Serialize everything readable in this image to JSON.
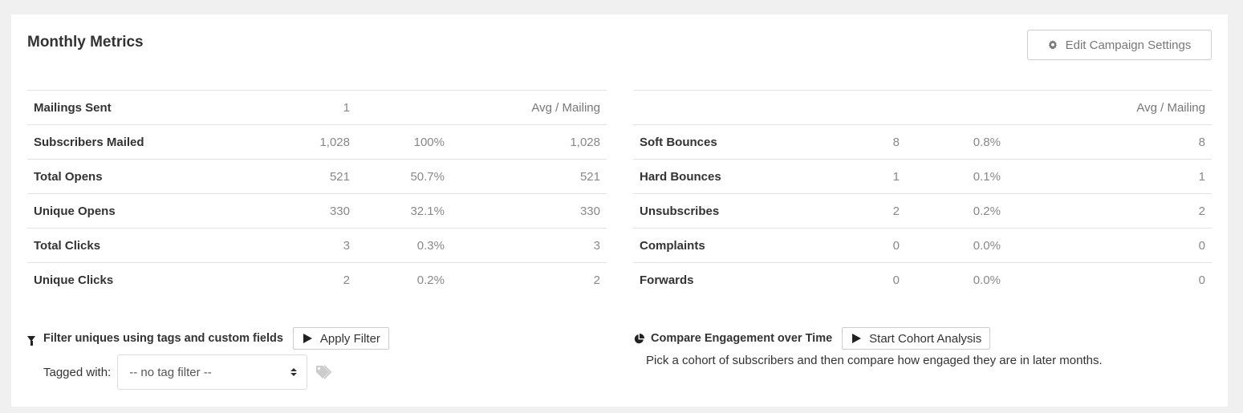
{
  "panel": {
    "title": "Monthly Metrics",
    "edit_button": {
      "label": "Edit Campaign Settings",
      "icon": "gear-icon"
    }
  },
  "left_table": {
    "header": {
      "label": "Mailings Sent",
      "value": "1",
      "avg_label": "Avg / Mailing"
    },
    "rows": [
      {
        "label": "Subscribers Mailed",
        "value": "1,028",
        "pct": "100%",
        "avg": "1,028"
      },
      {
        "label": "Total Opens",
        "value": "521",
        "pct": "50.7%",
        "avg": "521"
      },
      {
        "label": "Unique Opens",
        "value": "330",
        "pct": "32.1%",
        "avg": "330"
      },
      {
        "label": "Total Clicks",
        "value": "3",
        "pct": "0.3%",
        "avg": "3"
      },
      {
        "label": "Unique Clicks",
        "value": "2",
        "pct": "0.2%",
        "avg": "2"
      }
    ]
  },
  "right_table": {
    "header": {
      "avg_label": "Avg / Mailing"
    },
    "rows": [
      {
        "label": "Soft Bounces",
        "value": "8",
        "pct": "0.8%",
        "avg": "8"
      },
      {
        "label": "Hard Bounces",
        "value": "1",
        "pct": "0.1%",
        "avg": "1"
      },
      {
        "label": "Unsubscribes",
        "value": "2",
        "pct": "0.2%",
        "avg": "2"
      },
      {
        "label": "Complaints",
        "value": "0",
        "pct": "0.0%",
        "avg": "0"
      },
      {
        "label": "Forwards",
        "value": "0",
        "pct": "0.0%",
        "avg": "0"
      }
    ]
  },
  "filter": {
    "heading": "Filter uniques using tags and custom fields",
    "apply_label": "Apply Filter",
    "tagged_with_label": "Tagged with:",
    "tag_select_value": "-- no tag filter --"
  },
  "cohort": {
    "heading": "Compare Engagement over Time",
    "button_label": "Start Cohort Analysis",
    "description": "Pick a cohort of subscribers and then compare how engaged they are in later months."
  }
}
